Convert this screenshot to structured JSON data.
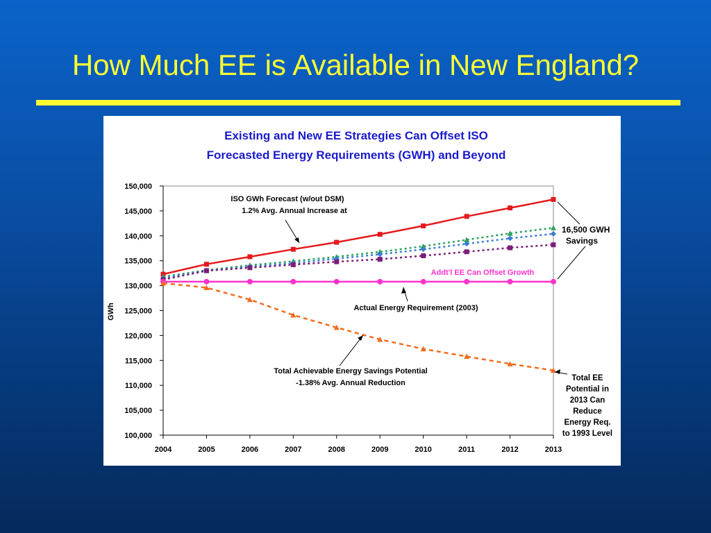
{
  "slide": {
    "title": "How Much EE is Available in New England?"
  },
  "colors": {
    "background": "#0a50a8",
    "title": "#ffff33",
    "forecast": "#e31a1c",
    "series_green": "#2ca25f",
    "series_blue": "#3b7dd8",
    "series_purple": "#7a1f7a",
    "actual": "#ff33cc",
    "savings_potential": "#f26b1d",
    "chart_title": "#1a1acc"
  },
  "chart_data": {
    "type": "line",
    "title_line1": "Existing and New EE Strategies Can Offset ISO",
    "title_line2": "Forecasted Energy Requirements (GWH) and Beyond",
    "xlabel": "",
    "ylabel": "GWh",
    "ylim": [
      100000,
      150000
    ],
    "yticks": [
      "150,000",
      "145,000",
      "140,000",
      "135,000",
      "130,000",
      "125,000",
      "120,000",
      "115,000",
      "110,000",
      "105,000",
      "100,000"
    ],
    "ytick_values": [
      150000,
      145000,
      140000,
      135000,
      130000,
      125000,
      120000,
      115000,
      110000,
      105000,
      100000
    ],
    "categories": [
      "2004",
      "2005",
      "2006",
      "2007",
      "2008",
      "2009",
      "2010",
      "2011",
      "2012",
      "2013"
    ],
    "grid": false,
    "series": [
      {
        "key": "forecast",
        "style": "solid",
        "marker": "square",
        "values": [
          132300,
          134300,
          135800,
          137300,
          138700,
          140300,
          142000,
          143900,
          145600,
          147300
        ]
      },
      {
        "key": "green",
        "style": "dotted",
        "marker": "triangle",
        "values": [
          131800,
          133100,
          134100,
          134900,
          135800,
          136800,
          137900,
          139200,
          140500,
          141600
        ]
      },
      {
        "key": "blue",
        "style": "dotted",
        "marker": "diamond",
        "values": [
          131500,
          133000,
          133800,
          134500,
          135400,
          136300,
          137300,
          138400,
          139500,
          140400
        ]
      },
      {
        "key": "purple",
        "style": "dotted",
        "marker": "square",
        "values": [
          131200,
          133000,
          133600,
          134200,
          134800,
          135300,
          136000,
          136800,
          137600,
          138200
        ]
      },
      {
        "key": "actual",
        "style": "solid",
        "marker": "circle",
        "values": [
          130800,
          130800,
          130800,
          130800,
          130800,
          130800,
          130800,
          130800,
          130800,
          130800
        ]
      },
      {
        "key": "savings_potential",
        "style": "dashed",
        "marker": "triangle",
        "values": [
          130500,
          129600,
          127200,
          124100,
          121600,
          119200,
          117300,
          115800,
          114300,
          113000
        ]
      }
    ],
    "annotations": {
      "forecast_line1": "ISO GWh Forecast (w/out DSM)",
      "forecast_line2": "1.2% Avg. Annual Increase at",
      "savings_gwh_line1": "16,500 GWH",
      "savings_gwh_line2": "Savings",
      "offset_growth": "Addt'l EE Can Offset Growth",
      "actual": "Actual Energy Requirement (2003)",
      "potential_line1": "Total Achievable Energy Savings Potential",
      "potential_line2": "-1.38% Avg. Annual Reduction",
      "total_ee": [
        "Total EE",
        "Potential in",
        "2013 Can",
        "Reduce",
        "Energy Req.",
        "to 1993 Level"
      ]
    }
  }
}
